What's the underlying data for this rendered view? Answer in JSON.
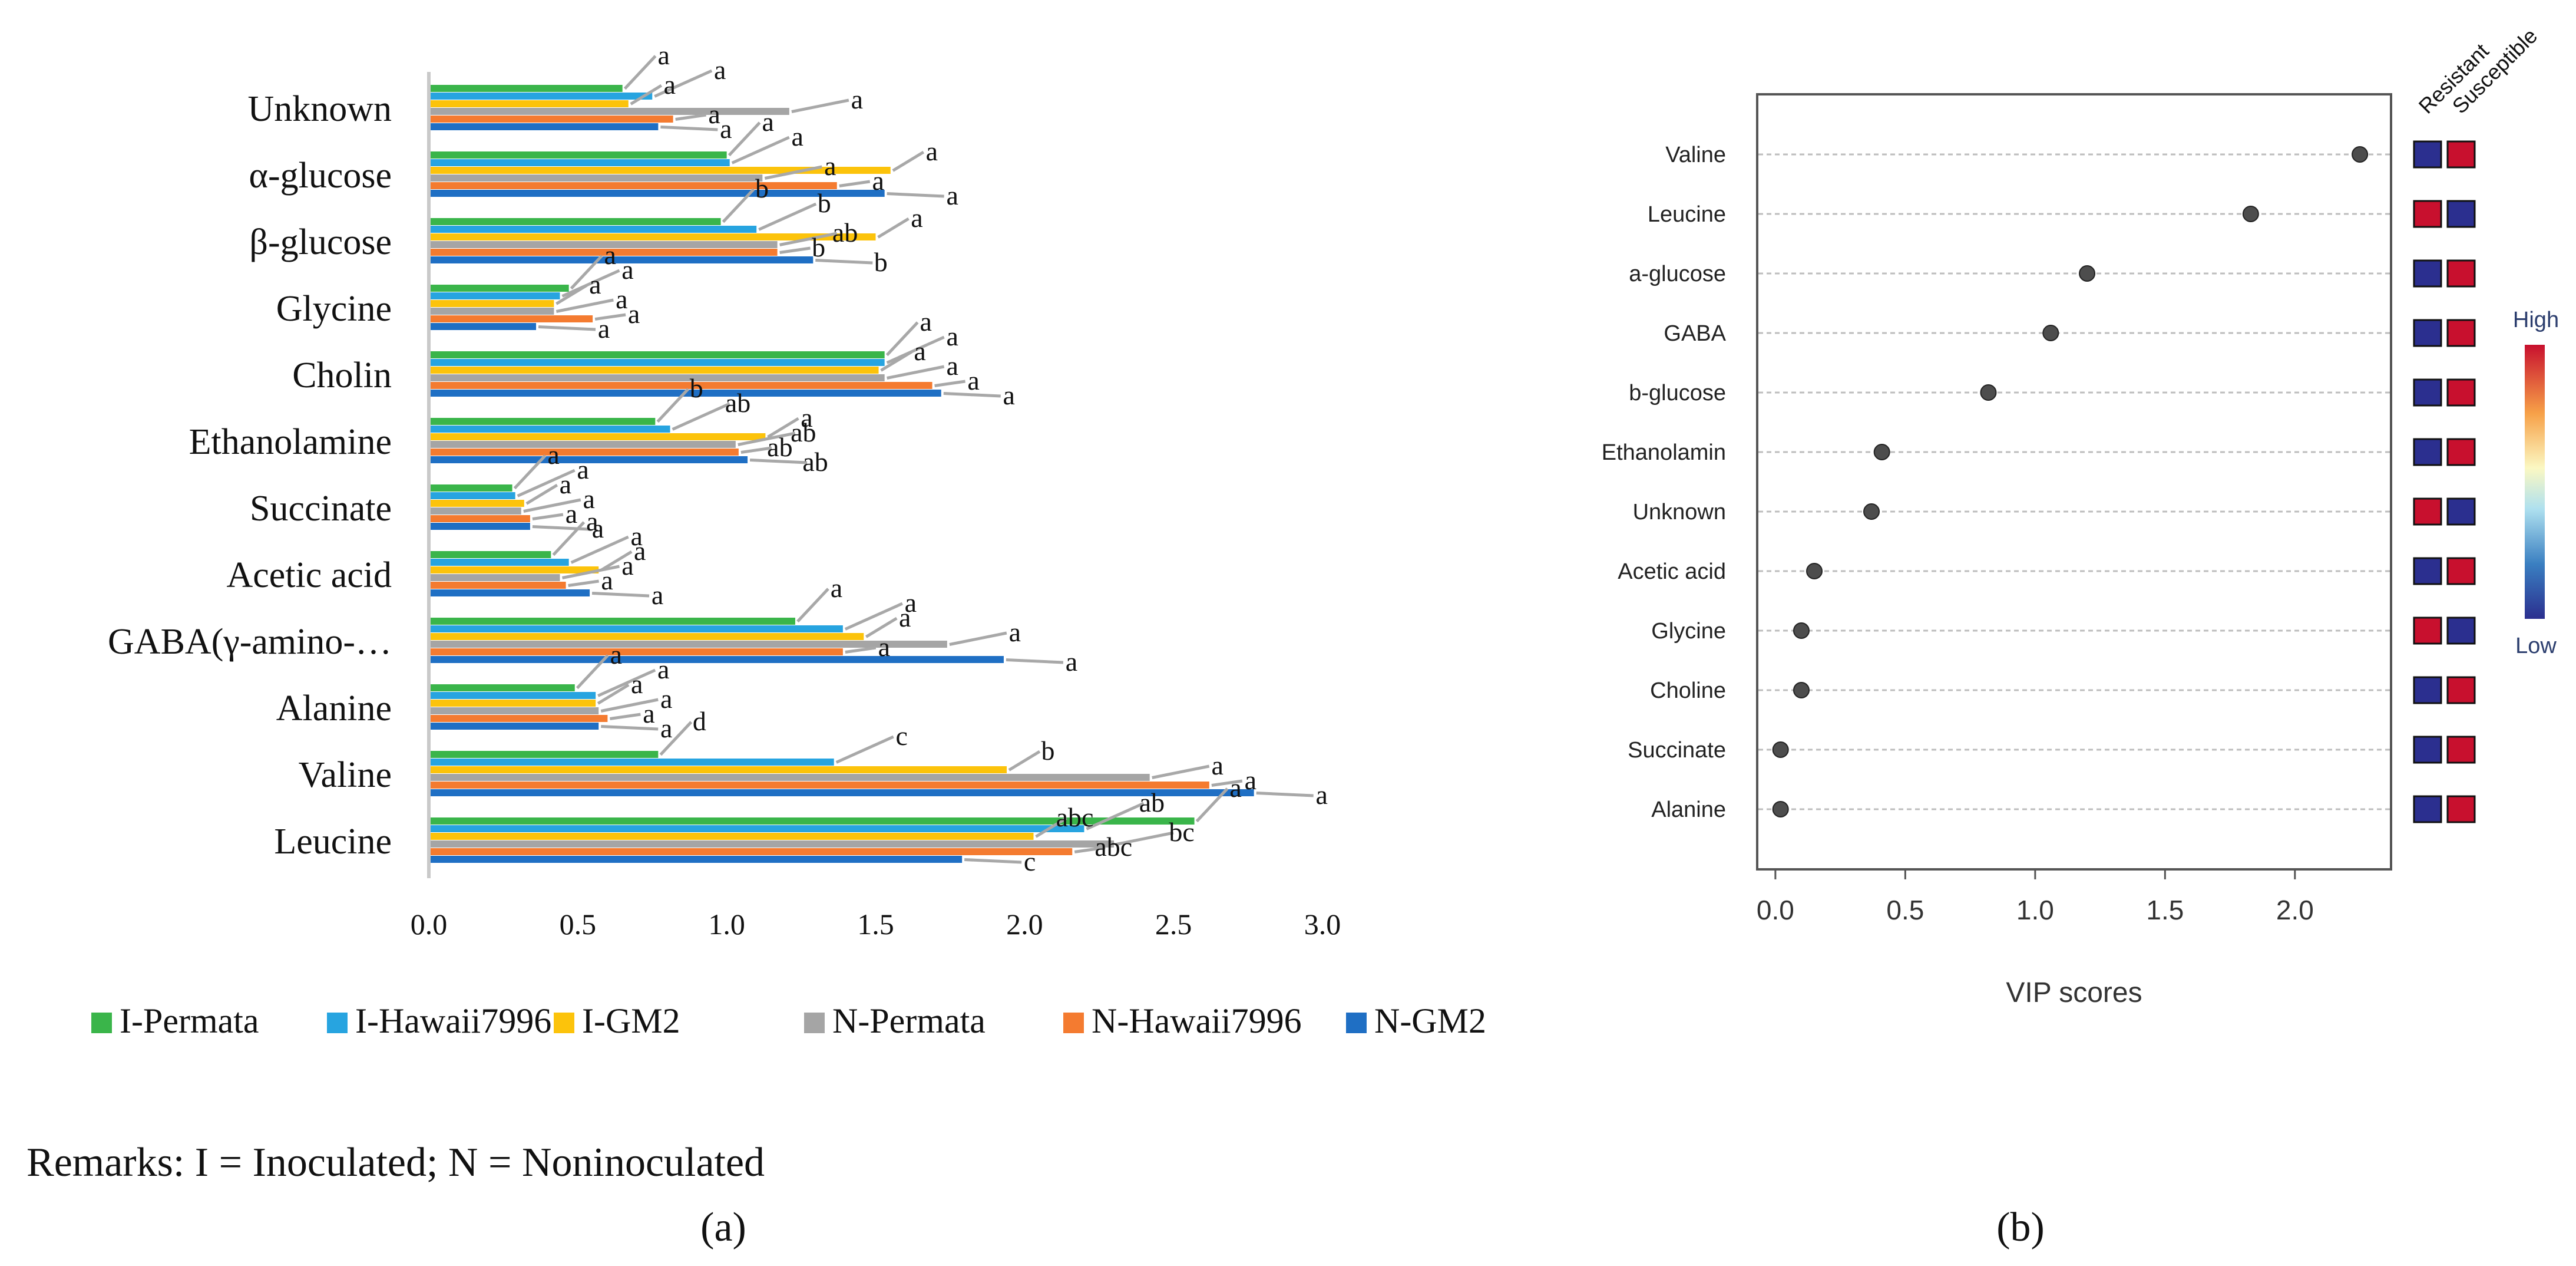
{
  "panel_a": {
    "label": "(a)",
    "remarks": "Remarks: I = Inoculated; N = Noninoculated",
    "chart_data": {
      "type": "bar",
      "orientation": "horizontal",
      "categories": [
        "Unknown",
        "α-glucose",
        "β-glucose",
        "Glycine",
        "Cholin",
        "Ethanolamine",
        "Succinate",
        "Acetic acid",
        "GABA(γ-amino-…",
        "Alanine",
        "Valine",
        "Leucine"
      ],
      "xlim": [
        0,
        3.0
      ],
      "xticks": [
        "0.0",
        "0.5",
        "1.0",
        "1.5",
        "2.0",
        "2.5",
        "3.0"
      ],
      "legend_position": "bottom",
      "series": [
        {
          "name": "I-Permata",
          "color": "#3ab54a",
          "values": [
            0.65,
            1.0,
            0.98,
            0.47,
            1.53,
            0.76,
            0.28,
            0.41,
            1.23,
            0.49,
            0.77,
            2.57
          ],
          "letters": [
            "a",
            "a",
            "b",
            "a",
            "a",
            "b",
            "a",
            "a",
            "a",
            "a",
            "d",
            "a"
          ]
        },
        {
          "name": "I-Hawaii7996",
          "color": "#27a4e0",
          "values": [
            0.75,
            1.01,
            1.1,
            0.44,
            1.53,
            0.81,
            0.29,
            0.47,
            1.39,
            0.56,
            1.36,
            2.2
          ],
          "letters": [
            "a",
            "a",
            "b",
            "a",
            "a",
            "ab",
            "a",
            "a",
            "a",
            "a",
            "c",
            "ab"
          ]
        },
        {
          "name": "I-GM2",
          "color": "#fcc30b",
          "values": [
            0.67,
            1.55,
            1.5,
            0.42,
            1.51,
            1.13,
            0.32,
            0.57,
            1.46,
            0.56,
            1.94,
            2.03
          ],
          "letters": [
            "a",
            "a",
            "a",
            "a",
            "a",
            "a",
            "a",
            "a",
            "a",
            "a",
            "b",
            "abc"
          ]
        },
        {
          "name": "N-Permata",
          "color": "#a5a5a5",
          "values": [
            1.21,
            1.12,
            1.17,
            0.42,
            1.53,
            1.03,
            0.31,
            0.44,
            1.74,
            0.57,
            2.42,
            2.3
          ],
          "letters": [
            "a",
            "a",
            "ab",
            "a",
            "a",
            "ab",
            "a",
            "a",
            "a",
            "a",
            "a",
            "bc"
          ]
        },
        {
          "name": "N-Hawaii7996",
          "color": "#f47b30",
          "values": [
            0.82,
            1.37,
            1.17,
            0.55,
            1.69,
            1.04,
            0.34,
            0.46,
            1.39,
            0.6,
            2.62,
            2.16
          ],
          "letters": [
            "a",
            "a",
            "b",
            "a",
            "a",
            "ab",
            "a",
            "a",
            "a",
            "a",
            "a",
            "abc"
          ]
        },
        {
          "name": "N-GM2",
          "color": "#1f6fc4",
          "values": [
            0.77,
            1.53,
            1.29,
            0.36,
            1.72,
            1.07,
            0.34,
            0.54,
            1.93,
            0.57,
            2.77,
            1.79
          ],
          "letters": [
            "a",
            "a",
            "b",
            "a",
            "a",
            "ab",
            "a",
            "a",
            "a",
            "a",
            "a",
            "c"
          ]
        }
      ]
    }
  },
  "panel_b": {
    "label": "(b)",
    "chart_data": {
      "type": "scatter",
      "categories": [
        "Valine",
        "Leucine",
        "a-glucose",
        "GABA",
        "b-glucose",
        "Ethanolamin",
        "Unknown",
        "Acetic acid",
        "Glycine",
        "Choline",
        "Succinate",
        "Alanine"
      ],
      "values": [
        2.25,
        1.83,
        1.2,
        1.06,
        0.82,
        0.41,
        0.37,
        0.15,
        0.1,
        0.1,
        0.02,
        0.02
      ],
      "xlabel": "VIP scores",
      "xlim": [
        -0.07,
        2.37
      ],
      "xticks": [
        "0.0",
        "0.5",
        "1.0",
        "1.5",
        "2.0"
      ],
      "grid": "horizontal dashed",
      "heatmap": {
        "columns": [
          "Resistant",
          "Susceptible"
        ],
        "levels": [
          [
            "low",
            "high"
          ],
          [
            "high",
            "low"
          ],
          [
            "low",
            "high"
          ],
          [
            "low",
            "high"
          ],
          [
            "low",
            "high"
          ],
          [
            "low",
            "high"
          ],
          [
            "high",
            "low"
          ],
          [
            "low",
            "high"
          ],
          [
            "high",
            "low"
          ],
          [
            "low",
            "high"
          ],
          [
            "low",
            "high"
          ],
          [
            "low",
            "high"
          ]
        ],
        "colors": {
          "low": "#2b2f8f",
          "high": "#c8102e"
        }
      },
      "colorbar": {
        "high_label": "High",
        "low_label": "Low"
      }
    }
  }
}
